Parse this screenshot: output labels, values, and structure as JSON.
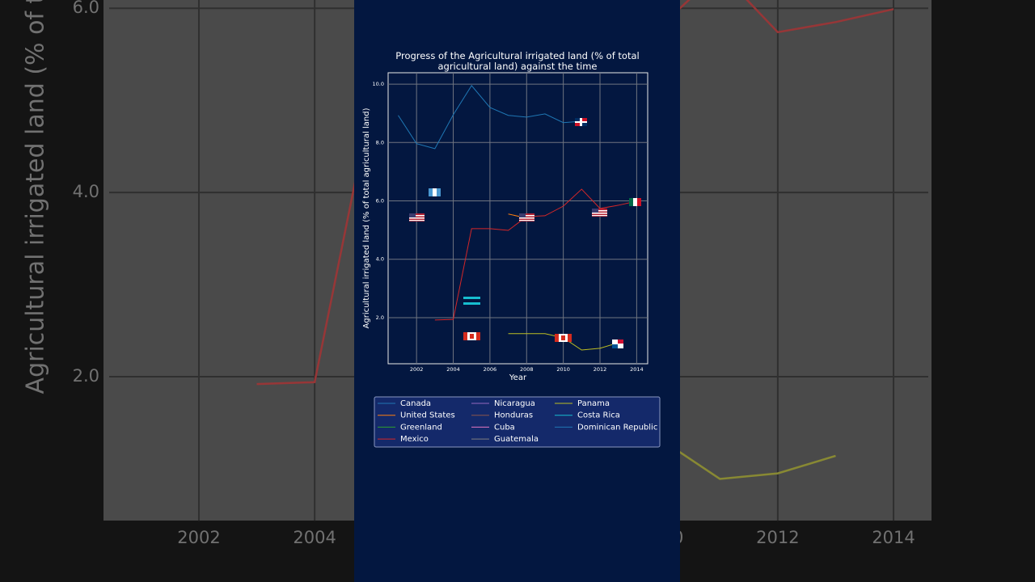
{
  "chart_data": {
    "type": "line",
    "title": "Progress of the Agricultural irrigated land (% of total agricultural land) against the time",
    "x_label": "Year",
    "y_label": "Agricultural irrigated land (% of total agricultural land)",
    "x": [
      2001,
      2002,
      2003,
      2004,
      2005,
      2006,
      2007,
      2008,
      2009,
      2010,
      2011,
      2012,
      2013,
      2014
    ],
    "xlim": [
      2000.45,
      2014.6
    ],
    "xticks": [
      2002,
      2004,
      2006,
      2008,
      2010,
      2012,
      2014
    ],
    "ylim": [
      0.42,
      10.39
    ],
    "yticks": [
      {
        "value": 2,
        "label": "2.0"
      },
      {
        "value": 4,
        "label": "4.0"
      },
      {
        "value": 6,
        "label": "6.0"
      },
      {
        "value": 8,
        "label": "8.0"
      },
      {
        "value": 10,
        "label": "10.0"
      }
    ],
    "grid": true,
    "series": [
      {
        "name": "Canada",
        "color": "#1f77b4",
        "values": [
          null,
          null,
          null,
          null,
          null,
          null,
          null,
          null,
          null,
          null,
          null,
          null,
          null,
          null
        ]
      },
      {
        "name": "United States",
        "color": "#ff7f0e",
        "values": [
          null,
          null,
          null,
          null,
          null,
          null,
          5.55,
          5.41,
          null,
          null,
          null,
          null,
          null,
          null
        ]
      },
      {
        "name": "Greenland",
        "color": "#2ca02c",
        "values": [
          null,
          null,
          null,
          null,
          null,
          null,
          null,
          null,
          null,
          null,
          null,
          null,
          null,
          null
        ]
      },
      {
        "name": "Mexico",
        "color": "#d62728",
        "values": [
          null,
          null,
          1.92,
          1.94,
          5.05,
          5.05,
          4.99,
          5.46,
          5.49,
          5.82,
          6.4,
          5.74,
          5.85,
          5.99
        ]
      },
      {
        "name": "Nicaragua",
        "color": "#9467bd",
        "values": [
          null,
          null,
          null,
          null,
          null,
          null,
          null,
          null,
          null,
          null,
          null,
          null,
          null,
          null
        ]
      },
      {
        "name": "Honduras",
        "color": "#8c564b",
        "values": [
          null,
          null,
          null,
          null,
          null,
          null,
          null,
          null,
          null,
          null,
          null,
          null,
          null,
          null
        ]
      },
      {
        "name": "Cuba",
        "color": "#e377c2",
        "values": [
          null,
          null,
          null,
          null,
          null,
          null,
          null,
          null,
          null,
          null,
          null,
          null,
          null,
          null
        ]
      },
      {
        "name": "Guatemala",
        "color": "#7f7f7f",
        "values": [
          null,
          null,
          null,
          null,
          null,
          null,
          null,
          null,
          null,
          null,
          null,
          null,
          null,
          null
        ]
      },
      {
        "name": "Panama",
        "color": "#bcbd22",
        "values": [
          null,
          null,
          null,
          null,
          null,
          null,
          1.45,
          1.45,
          1.45,
          1.31,
          0.89,
          0.95,
          1.14,
          null
        ]
      },
      {
        "name": "Costa Rica",
        "color": "#17becf",
        "values": [
          null,
          null,
          null,
          null,
          null,
          null,
          null,
          null,
          null,
          null,
          null,
          null,
          null,
          null
        ]
      },
      {
        "name": "Dominican Republic",
        "color": "#1f77b4",
        "values": [
          8.93,
          7.96,
          7.79,
          8.95,
          9.95,
          9.2,
          8.93,
          8.87,
          8.98,
          8.68,
          8.73,
          null,
          null,
          null
        ]
      }
    ]
  }
}
